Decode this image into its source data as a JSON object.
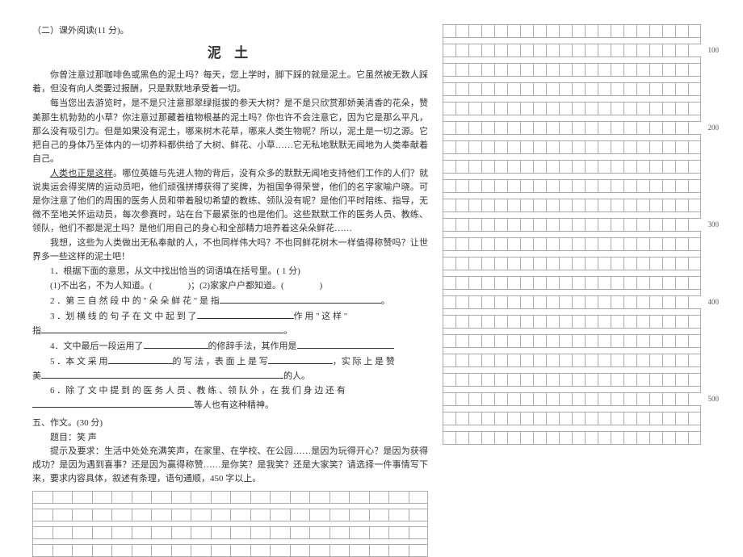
{
  "section_head": "（二）课外阅读(11 分)。",
  "title": "泥 土",
  "paragraphs": [
    "你曾注意过那咖啡色或黑色的泥土吗？每天，您上学时，脚下踩的就是泥土。它虽然被无数人踩着，但没有向人类要过报酬，只是默默地承受着一切。",
    "每当您出去游览时，是不是只注意那翠绿挺拔的参天大树？是不是只欣赏那娇美清香的花朵，赞美那生机勃勃的小草？你注意过那藏着植物根基的泥土吗？你也许不会注意它，因为它是那么平凡，那么没有吸引力。但是如果没有泥土，哪来树木花草，哪来人类生物呢？所以，泥土是一切之源。它把自己的身体乃至体内的一切养料都供给了大树、鲜花、小草……它无私地默默无闻地为人类奉献着自己。",
    "人类也正是这样。哪位英雄与先进人物的背后，没有众多的默默无闻地支持他们工作的人们？就说奥运会得奖牌的运动员吧，他们顽强拼搏获得了奖牌，为祖国争得荣誉，他们的名字家喻户晓。可是你注意了他们的周围的医务人员和带着殷切希望的教练、领队没有呢？是他们平时陪练、指导，无微不至地关怀运动员，每次参赛时，站在台下最紧张的也是他们。这些默默工作的医务人员、教练、领队，他们不都是泥土吗？是他们用自己的身心和全部精力培养着这朵朵鲜花……",
    "我想，这些为人类做出无私奉献的人，不也同样伟大吗？不也同鲜花树木一样值得称赞吗？让世界多一些这样的泥土吧！"
  ],
  "questions": {
    "q1": "1．根据下面的意思，从文中找出恰当的词语填在括号里。( 1 分)",
    "q1a": "(1)不出名，不为人知道。(　　　　)；(2)家家户户都知道。(　　　　)",
    "q2": "2 ．第 三 自 然 段 中 的 \" 朵 朵 鲜 花 \" 是 指",
    "q3_pre": "3  ．划 横 线 的 句 子 在 文 中 起 到 了",
    "q3_suf": "作 用 \" 这 样 \"",
    "q3_line2": "指",
    "q4": "4．文中最后一段运用了",
    "q4_suf": "的修辞手法，其作用是",
    "q5": "5 ．本 文 采 用",
    "q5_mid": "的 写 法 ，表 面 上 是 写",
    "q5_suf": "，实 际 上 是 赞",
    "q5_line2": "美",
    "q5_line2_suf": "的人。",
    "q6": "6 ．除 了 文 中 提 到 的 医 务 人 员 、教 练 、领 队 外 ，在 我 们 身 边 还 有",
    "q6_suf": "等人也有这种精神。"
  },
  "composition": {
    "head": "五、作文。(30 分)",
    "topic": "题目：笑 声",
    "req": "提示及要求：生活中处处充满笑声，在家里、在学校、在公园……是因为玩得开心？是因为获得成功？是因为遇到喜事？还是因为赢得称赞……是你笑？是我笑？还是大家笑？请选择一件事情写下来，要求内容具体，叙述有条理，语句通顺，450 字以上。"
  },
  "grid": {
    "left_cols": 20,
    "left_rows": 4,
    "right_cols": 20,
    "right_rows": 22,
    "labels": [
      "100",
      "200",
      "300",
      "400",
      "500"
    ],
    "border_color": "#aaaaaa"
  }
}
